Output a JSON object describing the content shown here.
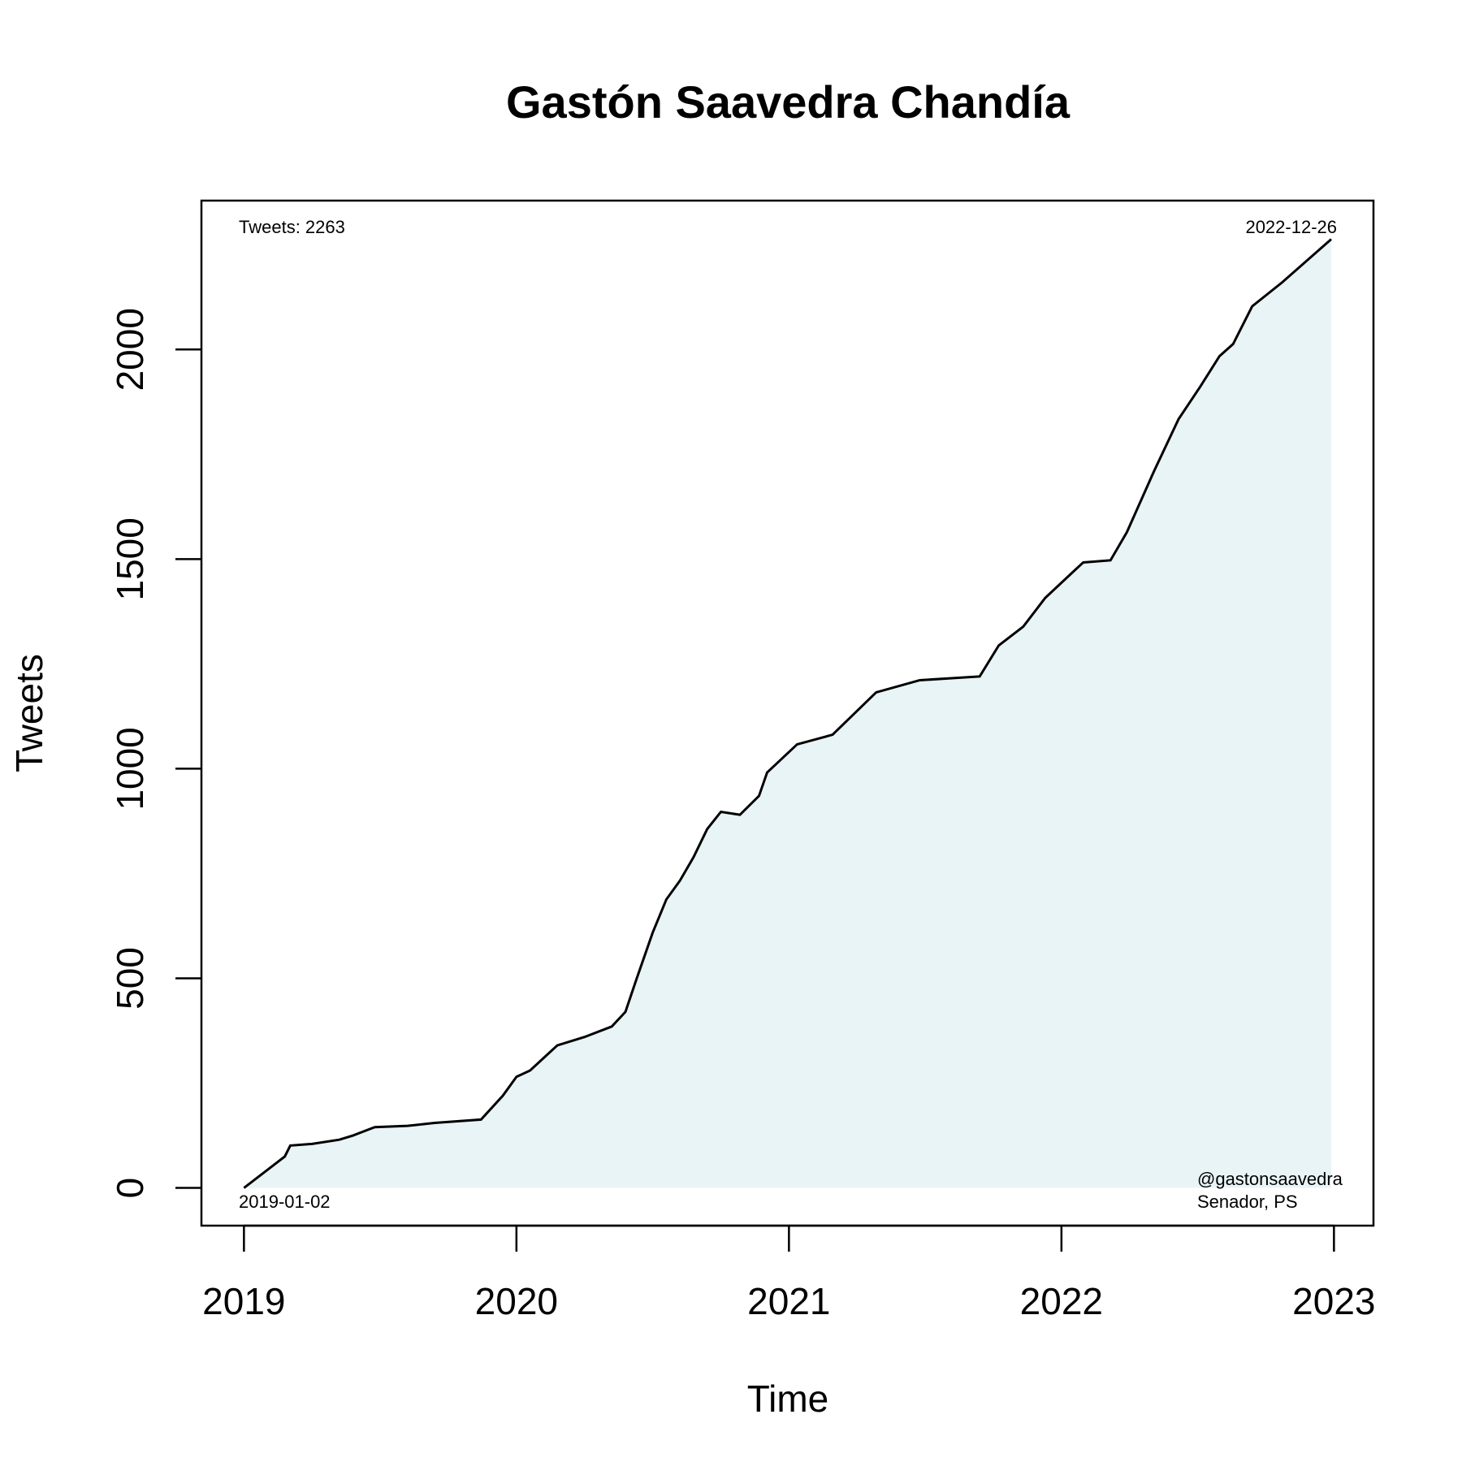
{
  "chart_data": {
    "type": "line",
    "title": "Gastón Saavedra Chandía",
    "x_label": "Time",
    "y_label": "Tweets",
    "x": [
      2019.0,
      2019.08,
      2019.15,
      2019.17,
      2019.25,
      2019.35,
      2019.4,
      2019.48,
      2019.6,
      2019.7,
      2019.87,
      2019.95,
      2020.0,
      2020.05,
      2020.1,
      2020.15,
      2020.25,
      2020.35,
      2020.4,
      2020.44,
      2020.5,
      2020.55,
      2020.6,
      2020.65,
      2020.7,
      2020.75,
      2020.82,
      2020.89,
      2020.92,
      2021.03,
      2021.16,
      2021.32,
      2021.48,
      2021.7,
      2021.77,
      2021.86,
      2021.94,
      2022.05,
      2022.08,
      2022.18,
      2022.24,
      2022.34,
      2022.43,
      2022.51,
      2022.58,
      2022.63,
      2022.7,
      2022.81,
      2022.99
    ],
    "series": [
      {
        "name": "Tweets",
        "color": "#000000",
        "fill": "#e9f4f7",
        "values": [
          0,
          40,
          75,
          101,
          105,
          115,
          125,
          145,
          148,
          155,
          163,
          220,
          265,
          280,
          310,
          340,
          360,
          385,
          420,
          497,
          609,
          688,
          733,
          789,
          856,
          897,
          890,
          935,
          991,
          1058,
          1081,
          1182,
          1211,
          1220,
          1294,
          1339,
          1407,
          1474,
          1492,
          1497,
          1564,
          1710,
          1834,
          1912,
          1984,
          2013,
          2103,
          2160,
          2263
        ]
      }
    ],
    "xlim": [
      2018.844,
      2023.145
    ],
    "xticks": [
      2019,
      2020,
      2021,
      2022,
      2023
    ],
    "ylim": [
      -90,
      2355
    ],
    "yticks": [
      0,
      500,
      1000,
      1500,
      2000
    ],
    "annotations": {
      "total": "Tweets: 2263",
      "end_date": "2022-12-26",
      "start_date": "2019-01-02",
      "handle": "@gastonsaavedra",
      "role": "Senador, PS"
    }
  }
}
